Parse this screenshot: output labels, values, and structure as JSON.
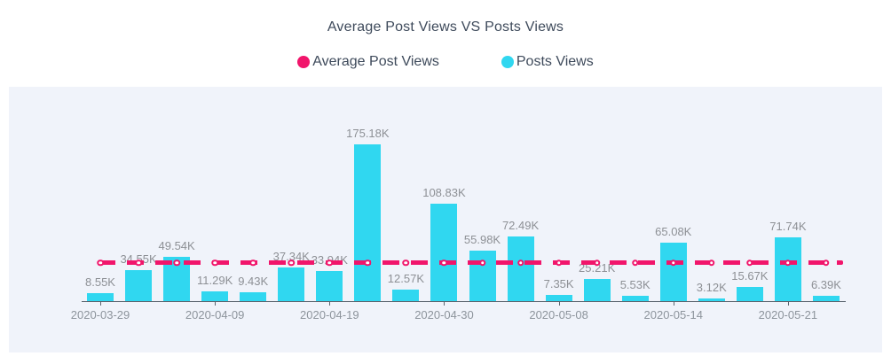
{
  "title": "Average Post Views VS Posts Views",
  "legend": {
    "position": "top-center",
    "items": [
      {
        "label": "Average Post Views",
        "color": "#F1156B",
        "series_type": "line"
      },
      {
        "label": "Posts Views",
        "color": "#30D7F0",
        "series_type": "bar"
      }
    ]
  },
  "colors": {
    "page_background": "#FFFFFF",
    "plot_background": "#F0F3FA",
    "bar": "#30D7F0",
    "average_line": "#F1156B",
    "title_text": "#3E4A5B",
    "value_label_text": "#8D9095",
    "axis_label_text": "#8D949C",
    "axis_line": "#5A646E"
  },
  "chart_data": {
    "type": "bar",
    "title": "Average Post Views VS Posts Views",
    "unit": "K (thousand views)",
    "n_bars": 20,
    "grid": false,
    "y_axis": "hidden",
    "ylim_k": [
      0,
      190
    ],
    "legend_position": "top-center",
    "x_ticks_visible": [
      {
        "bar_index": 0,
        "label": "2020-03-29"
      },
      {
        "bar_index": 3,
        "label": "2020-04-09"
      },
      {
        "bar_index": 6,
        "label": "2020-04-19"
      },
      {
        "bar_index": 9,
        "label": "2020-04-30"
      },
      {
        "bar_index": 12,
        "label": "2020-05-08"
      },
      {
        "bar_index": 15,
        "label": "2020-05-14"
      },
      {
        "bar_index": 18,
        "label": "2020-05-21"
      }
    ],
    "series": [
      {
        "name": "Posts Views",
        "type": "bar",
        "color": "#30D7F0",
        "values_k": [
          8.55,
          34.55,
          49.54,
          11.29,
          9.43,
          37.34,
          33.94,
          175.18,
          12.57,
          108.83,
          55.98,
          72.49,
          7.35,
          25.21,
          5.53,
          65.08,
          3.12,
          15.67,
          71.74,
          6.39
        ],
        "value_labels": [
          "8.55K",
          "34.55K",
          "49.54K",
          "11.29K",
          "9.43K",
          "37.34K",
          "33.94K",
          "175.18K",
          "12.57K",
          "108.83K",
          "55.98K",
          "72.49K",
          "7.35K",
          "25.21K",
          "5.53K",
          "65.08K",
          "3.12K",
          "15.67K",
          "71.74K",
          "6.39K"
        ]
      },
      {
        "name": "Average Post Views",
        "type": "line",
        "style": "dashed",
        "marker": "empty-circle",
        "color": "#F1156B",
        "constant_value_k_estimated": 42.6
      }
    ]
  }
}
